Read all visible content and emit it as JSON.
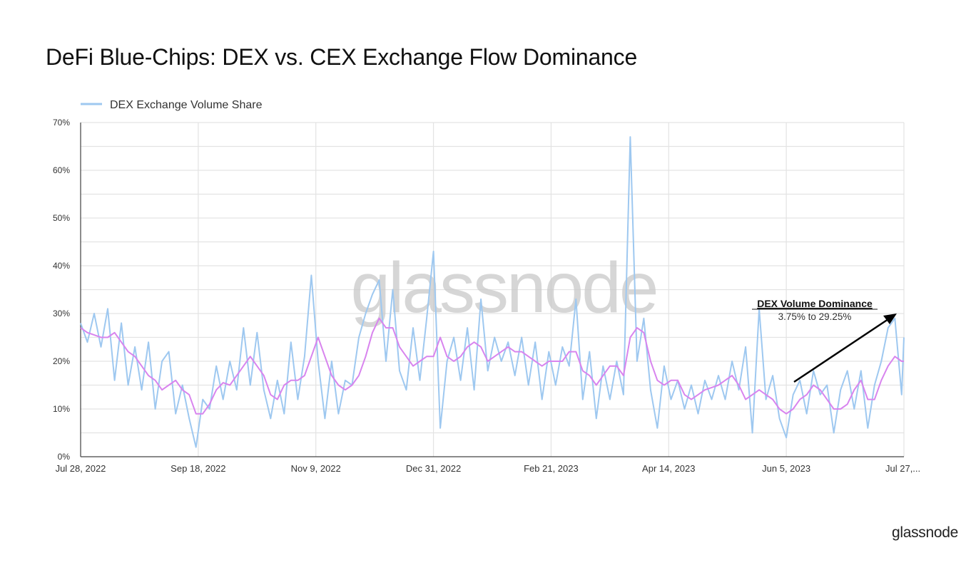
{
  "title": "DeFi Blue-Chips: DEX vs. CEX Exchange Flow Dominance",
  "brand": "glassnode",
  "watermark": "glassnode",
  "chart_data": {
    "type": "line",
    "title": "DeFi Blue-Chips: DEX vs. CEX Exchange Flow Dominance",
    "xlabel": "",
    "ylabel": "",
    "ylim": [
      0,
      70
    ],
    "yticks": [
      "0%",
      "10%",
      "20%",
      "30%",
      "40%",
      "50%",
      "60%",
      "70%"
    ],
    "ytick_values": [
      0,
      10,
      20,
      30,
      40,
      50,
      60,
      70
    ],
    "xlim": [
      "2022-07-28",
      "2023-07-27"
    ],
    "xticks": [
      "Jul 28, 2022",
      "Sep 18, 2022",
      "Nov 9, 2022",
      "Dec 31, 2022",
      "Feb 21, 2023",
      "Apr 14, 2023",
      "Jun 5, 2023",
      "Jul 27,..."
    ],
    "xtick_dates": [
      "2022-07-28",
      "2022-09-18",
      "2022-11-09",
      "2022-12-31",
      "2023-02-21",
      "2023-04-14",
      "2023-06-05",
      "2023-07-27"
    ],
    "grid": true,
    "legend": "top-left",
    "x": [
      "2022-07-28",
      "2022-07-31",
      "2022-08-03",
      "2022-08-06",
      "2022-08-09",
      "2022-08-12",
      "2022-08-15",
      "2022-08-18",
      "2022-08-21",
      "2022-08-24",
      "2022-08-27",
      "2022-08-30",
      "2022-09-02",
      "2022-09-05",
      "2022-09-08",
      "2022-09-11",
      "2022-09-14",
      "2022-09-17",
      "2022-09-20",
      "2022-09-23",
      "2022-09-26",
      "2022-09-29",
      "2022-10-02",
      "2022-10-05",
      "2022-10-08",
      "2022-10-11",
      "2022-10-14",
      "2022-10-17",
      "2022-10-20",
      "2022-10-23",
      "2022-10-26",
      "2022-10-29",
      "2022-11-01",
      "2022-11-04",
      "2022-11-07",
      "2022-11-10",
      "2022-11-13",
      "2022-11-16",
      "2022-11-19",
      "2022-11-22",
      "2022-11-25",
      "2022-11-28",
      "2022-12-01",
      "2022-12-04",
      "2022-12-07",
      "2022-12-10",
      "2022-12-13",
      "2022-12-16",
      "2022-12-19",
      "2022-12-22",
      "2022-12-25",
      "2022-12-28",
      "2022-12-31",
      "2023-01-03",
      "2023-01-06",
      "2023-01-09",
      "2023-01-12",
      "2023-01-15",
      "2023-01-18",
      "2023-01-21",
      "2023-01-24",
      "2023-01-27",
      "2023-01-30",
      "2023-02-02",
      "2023-02-05",
      "2023-02-08",
      "2023-02-11",
      "2023-02-14",
      "2023-02-17",
      "2023-02-20",
      "2023-02-23",
      "2023-02-26",
      "2023-03-01",
      "2023-03-04",
      "2023-03-07",
      "2023-03-10",
      "2023-03-13",
      "2023-03-16",
      "2023-03-19",
      "2023-03-22",
      "2023-03-25",
      "2023-03-28",
      "2023-03-31",
      "2023-04-03",
      "2023-04-06",
      "2023-04-09",
      "2023-04-12",
      "2023-04-15",
      "2023-04-18",
      "2023-04-21",
      "2023-04-24",
      "2023-04-27",
      "2023-04-30",
      "2023-05-03",
      "2023-05-06",
      "2023-05-09",
      "2023-05-12",
      "2023-05-15",
      "2023-05-18",
      "2023-05-21",
      "2023-05-24",
      "2023-05-27",
      "2023-05-30",
      "2023-06-02",
      "2023-06-05",
      "2023-06-08",
      "2023-06-11",
      "2023-06-14",
      "2023-06-17",
      "2023-06-20",
      "2023-06-23",
      "2023-06-26",
      "2023-06-29",
      "2023-07-02",
      "2023-07-05",
      "2023-07-08",
      "2023-07-11",
      "2023-07-14",
      "2023-07-17",
      "2023-07-20",
      "2023-07-23",
      "2023-07-26",
      "2023-07-27"
    ],
    "series": [
      {
        "name": "DEX Exchange Volume Share",
        "color": "#9ec8f0",
        "values": [
          28,
          24,
          30,
          23,
          31,
          16,
          28,
          15,
          23,
          14,
          24,
          10,
          20,
          22,
          9,
          15,
          8,
          2,
          12,
          10,
          19,
          12,
          20,
          14,
          27,
          15,
          26,
          14,
          8,
          16,
          9,
          24,
          12,
          21,
          38,
          20,
          8,
          20,
          9,
          16,
          15,
          25,
          30,
          34,
          37,
          20,
          35,
          18,
          14,
          27,
          16,
          29,
          43,
          6,
          20,
          25,
          16,
          27,
          14,
          33,
          18,
          25,
          20,
          24,
          17,
          25,
          15,
          24,
          12,
          22,
          15,
          23,
          19,
          33,
          12,
          22,
          8,
          19,
          12,
          20,
          13,
          67,
          20,
          29,
          14,
          6,
          19,
          12,
          16,
          10,
          15,
          9,
          16,
          12,
          17,
          12,
          20,
          14,
          23,
          5,
          31,
          12,
          17,
          8,
          4,
          13,
          16,
          9,
          18,
          13,
          15,
          5,
          14,
          18,
          10,
          18,
          6,
          15,
          20,
          27,
          29,
          13,
          25
        ]
      },
      {
        "color": "#d884ee",
        "values": [
          27,
          26,
          25.5,
          25,
          25,
          26,
          24,
          22,
          21,
          19,
          17,
          16,
          14,
          15,
          16,
          14,
          13,
          9,
          9,
          11,
          14,
          15.5,
          15,
          17,
          19,
          21,
          19,
          17,
          13,
          12,
          15,
          16,
          16,
          17,
          21,
          25,
          21,
          17,
          15,
          14,
          15,
          17,
          21,
          26,
          29,
          27,
          27,
          23,
          21,
          19,
          20,
          21,
          21,
          25,
          21,
          20,
          21,
          23,
          24,
          23,
          20,
          21,
          22,
          23,
          22,
          22,
          21,
          20,
          19,
          20,
          20,
          20,
          22,
          22,
          18,
          17,
          15,
          17,
          19,
          19,
          17,
          25,
          27,
          26,
          20,
          16,
          15,
          16,
          16,
          13,
          12,
          13,
          14,
          14.5,
          15,
          16,
          17,
          15,
          12,
          13,
          14,
          13,
          12,
          10,
          9,
          10,
          12,
          13,
          15,
          14,
          12,
          10,
          10,
          11,
          14,
          16,
          12,
          12,
          16,
          19,
          21,
          20,
          20
        ]
      }
    ],
    "annotations": [
      {
        "title": "DEX Volume Dominance",
        "text": "3.75% to 29.25%"
      }
    ]
  }
}
